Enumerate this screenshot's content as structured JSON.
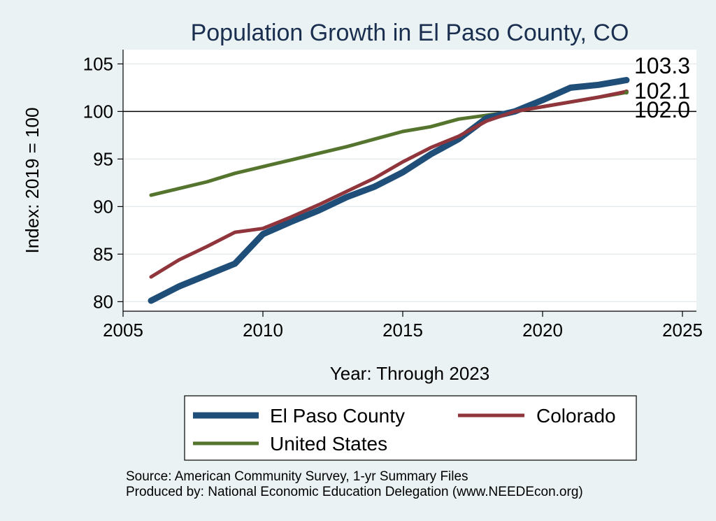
{
  "chart_data": {
    "type": "line",
    "title": "Population Growth in El Paso County, CO",
    "xlabel": "Year: Through 2023",
    "ylabel": "Index: 2019 = 100",
    "xlim": [
      2005,
      2025.5
    ],
    "ylim": [
      79,
      106.5
    ],
    "xticks": [
      2005,
      2010,
      2015,
      2020,
      2025
    ],
    "yticks": [
      80,
      85,
      90,
      95,
      100,
      105
    ],
    "reference_line": 100,
    "x": [
      2006,
      2007,
      2008,
      2009,
      2010,
      2011,
      2012,
      2013,
      2014,
      2015,
      2016,
      2017,
      2018,
      2019,
      2020,
      2021,
      2022,
      2023
    ],
    "series": [
      {
        "name": "El Paso  County",
        "color": "#1f4e79",
        "values": [
          80.1,
          81.6,
          82.8,
          84.0,
          87.1,
          88.4,
          89.6,
          91.0,
          92.1,
          93.6,
          95.5,
          97.1,
          99.3,
          100.0,
          101.2,
          102.5,
          102.8,
          103.3
        ],
        "end_label": "103.3"
      },
      {
        "name": "Colorado",
        "color": "#90353b",
        "values": [
          82.6,
          84.4,
          85.8,
          87.3,
          87.7,
          88.9,
          90.2,
          91.6,
          93.0,
          94.7,
          96.2,
          97.4,
          99.0,
          100.0,
          100.5,
          101.0,
          101.5,
          102.1
        ],
        "end_label": "102.1"
      },
      {
        "name": "United States",
        "color": "#55752f",
        "values": [
          91.2,
          91.9,
          92.6,
          93.5,
          94.2,
          94.9,
          95.6,
          96.3,
          97.1,
          97.9,
          98.4,
          99.2,
          99.6,
          100.0,
          100.5,
          101.0,
          101.5,
          102.0
        ],
        "end_label": "102.0"
      }
    ],
    "legend_placement": "bottom",
    "notes": [
      "Source: American Community Survey, 1-yr Summary Files",
      "Produced by: National Economic Education Delegation (www.NEEDEcon.org)"
    ]
  },
  "colors": {
    "background": "#eaf2f3",
    "plot_background": "#ffffff",
    "title": "#1a2f4f",
    "gridline": "#e3e9ec"
  }
}
